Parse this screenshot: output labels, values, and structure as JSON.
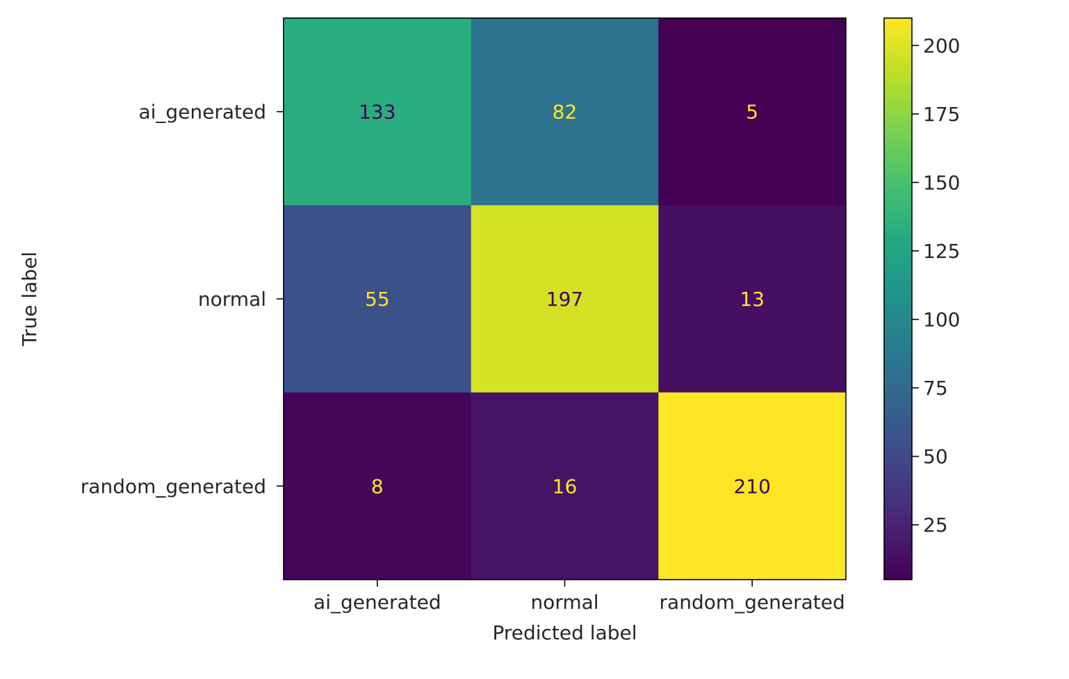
{
  "chart_data": {
    "type": "heatmap",
    "title": "",
    "xlabel": "Predicted label",
    "ylabel": "True label",
    "x_categories": [
      "ai_generated",
      "normal",
      "random_generated"
    ],
    "y_categories": [
      "ai_generated",
      "normal",
      "random_generated"
    ],
    "values": [
      [
        133,
        82,
        5
      ],
      [
        55,
        197,
        13
      ],
      [
        8,
        16,
        210
      ]
    ],
    "colormap": "viridis",
    "colorbar": {
      "range": [
        5,
        210
      ],
      "ticks": [
        25,
        50,
        75,
        100,
        125,
        150,
        175,
        200
      ]
    },
    "grid": false,
    "text_colors": {
      "dark_cell_text": "#fde725",
      "light_cell_text": "#440154"
    }
  }
}
